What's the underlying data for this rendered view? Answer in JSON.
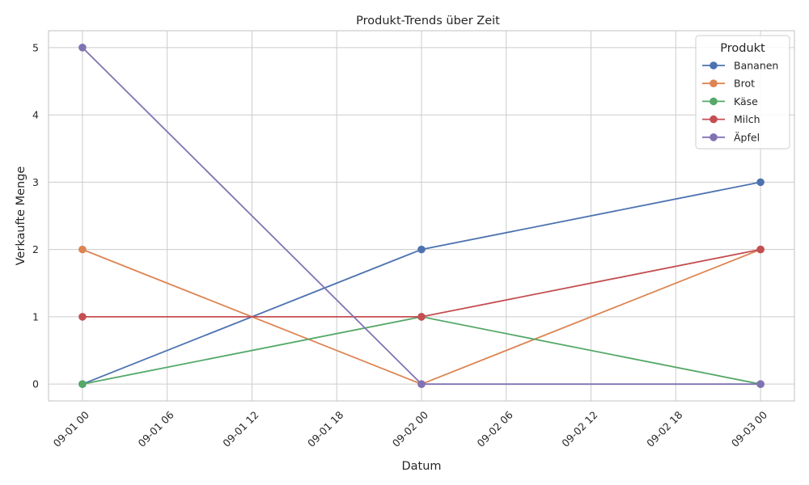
{
  "chart_data": {
    "type": "line",
    "title": "Produkt-Trends über Zeit",
    "xlabel": "Datum",
    "ylabel": "Verkaufte Menge",
    "x": [
      "2023-09-01 00:00",
      "2023-09-02 00:00",
      "2023-09-03 00:00"
    ],
    "x_ticks": [
      "09-01 00",
      "09-01 06",
      "09-01 12",
      "09-01 18",
      "09-02 00",
      "09-02 06",
      "09-02 12",
      "09-02 18",
      "09-03 00"
    ],
    "y_ticks": [
      "0",
      "1",
      "2",
      "3",
      "4",
      "5"
    ],
    "xlim_hours": [
      -2.4,
      50.4
    ],
    "ylim": [
      -0.25,
      5.25
    ],
    "grid": true,
    "legend_title": "Produkt",
    "legend_position": "top-right",
    "series": [
      {
        "name": "Bananen",
        "color": "#4c72b0",
        "values": [
          0,
          2,
          3
        ]
      },
      {
        "name": "Brot",
        "color": "#dd8452",
        "values": [
          2,
          0,
          2
        ]
      },
      {
        "name": "Käse",
        "color": "#55a868",
        "values": [
          0,
          1,
          0
        ]
      },
      {
        "name": "Milch",
        "color": "#c44e52",
        "values": [
          1,
          1,
          2
        ]
      },
      {
        "name": "Äpfel",
        "color": "#8172b3",
        "values": [
          5,
          0,
          0
        ]
      }
    ]
  }
}
